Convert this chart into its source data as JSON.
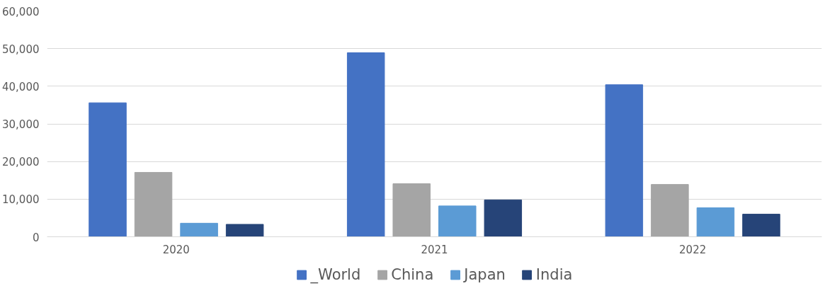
{
  "chart_data": {
    "type": "bar",
    "categories": [
      "2020",
      "2021",
      "2022"
    ],
    "series": [
      {
        "name": "_World",
        "color": "#4472c4",
        "values": [
          35600,
          48900,
          40400
        ]
      },
      {
        "name": "China",
        "color": "#a5a5a5",
        "values": [
          17100,
          14100,
          13900
        ]
      },
      {
        "name": "Japan",
        "color": "#5b9bd5",
        "values": [
          3600,
          8200,
          7700
        ]
      },
      {
        "name": "India",
        "color": "#264478",
        "values": [
          3300,
          9800,
          6000
        ]
      }
    ],
    "ylim": [
      0,
      60000
    ],
    "yticks": [
      {
        "value": 0,
        "label": "0"
      },
      {
        "value": 10000,
        "label": "10,000"
      },
      {
        "value": 20000,
        "label": "20,000"
      },
      {
        "value": 30000,
        "label": "30,000"
      },
      {
        "value": 40000,
        "label": "40,000"
      },
      {
        "value": 50000,
        "label": "50,000"
      },
      {
        "value": 60000,
        "label": "60,000"
      }
    ],
    "grid": "y",
    "legend": "bottom"
  }
}
